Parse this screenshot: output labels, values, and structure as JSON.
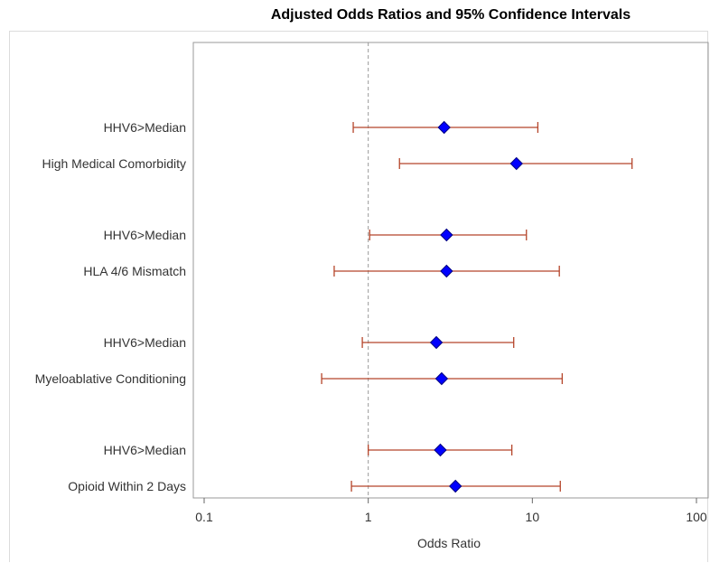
{
  "chart_data": {
    "type": "forest",
    "title": "Adjusted Odds Ratios and 95% Confidence Intervals",
    "xlabel": "Odds Ratio",
    "ylabel": "",
    "xscale": "log",
    "xlim": [
      0.1,
      100
    ],
    "xticks": [
      "0.1",
      "1",
      "10",
      "100"
    ],
    "reference_line": 1,
    "grid": false,
    "colors": {
      "marker": "#0000ff",
      "marker_edge": "#000080",
      "interval": "#b5452a",
      "reference": "#999999"
    },
    "groups": [
      {
        "rows": [
          {
            "label": "HHV6>Median",
            "or": 2.9,
            "lower": 0.81,
            "upper": 10.8
          },
          {
            "label": "High Medical Comorbidity",
            "or": 8.0,
            "lower": 1.55,
            "upper": 40.5
          }
        ]
      },
      {
        "rows": [
          {
            "label": "HHV6>Median",
            "or": 3.0,
            "lower": 1.02,
            "upper": 9.2
          },
          {
            "label": "HLA 4/6 Mismatch",
            "or": 3.0,
            "lower": 0.62,
            "upper": 14.6
          }
        ]
      },
      {
        "rows": [
          {
            "label": "HHV6>Median",
            "or": 2.6,
            "lower": 0.92,
            "upper": 7.7
          },
          {
            "label": "Myeloablative Conditioning",
            "or": 2.8,
            "lower": 0.52,
            "upper": 15.2
          }
        ]
      },
      {
        "rows": [
          {
            "label": "HHV6>Median",
            "or": 2.75,
            "lower": 1.0,
            "upper": 7.5
          },
          {
            "label": "Opioid Within 2 Days",
            "or": 3.4,
            "lower": 0.79,
            "upper": 14.8
          }
        ]
      }
    ]
  }
}
